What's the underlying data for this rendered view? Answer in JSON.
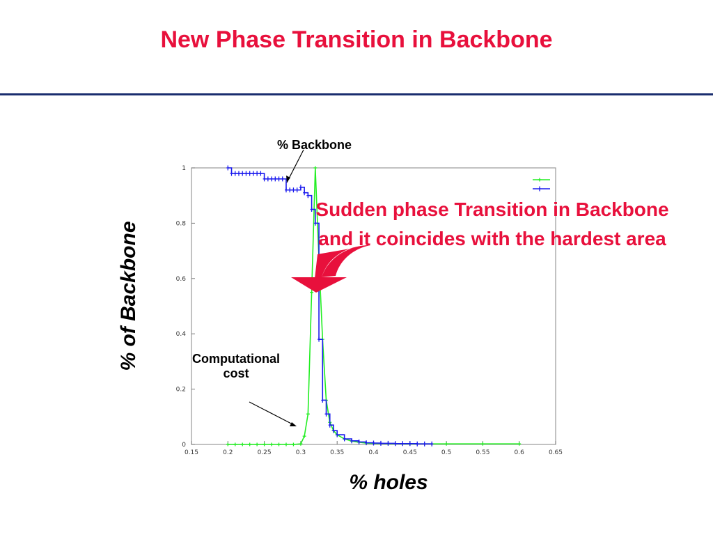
{
  "title": "New Phase Transition in Backbone",
  "colors": {
    "title": "#e8103c",
    "rule": "#1a2d6e",
    "callout": "#e8103c",
    "green": "#22ee22",
    "blue": "#1a1aee",
    "arrow": "#e8103c"
  },
  "annotations": {
    "backbone": "% Backbone",
    "cost_line1": "Computational",
    "cost_line2": "cost",
    "callout_line1": "Sudden phase Transition in Backbone",
    "callout_line2": "and it coincides with the hardest area"
  },
  "chart_data": {
    "type": "line",
    "xlabel": "% holes",
    "ylabel": "% of Backbone",
    "xlim": [
      0.15,
      0.65
    ],
    "ylim": [
      0,
      1
    ],
    "xticks": [
      "0.15",
      "0.2",
      "0.25",
      "0.3",
      "0.35",
      "0.4",
      "0.45",
      "0.5",
      "0.55",
      "0.6",
      "0.65"
    ],
    "yticks": [
      "0",
      "0.2",
      "0.4",
      "0.6",
      "0.8",
      "1"
    ],
    "grid": false,
    "legend_position": "top-right",
    "series": [
      {
        "color": "#22ee22",
        "x": [
          0.2,
          0.21,
          0.22,
          0.23,
          0.24,
          0.25,
          0.26,
          0.27,
          0.28,
          0.29,
          0.3,
          0.305,
          0.31,
          0.315,
          0.32,
          0.325,
          0.33,
          0.335,
          0.34,
          0.345,
          0.35,
          0.36,
          0.37,
          0.38,
          0.39,
          0.4,
          0.42,
          0.45,
          0.5,
          0.55,
          0.6
        ],
        "y": [
          0,
          0,
          0,
          0,
          0,
          0,
          0,
          0,
          0,
          0,
          0.002,
          0.03,
          0.11,
          0.55,
          1.0,
          0.67,
          0.38,
          0.16,
          0.08,
          0.05,
          0.035,
          0.02,
          0.012,
          0.008,
          0.005,
          0.004,
          0.003,
          0.002,
          0.002,
          0.002,
          0.002
        ]
      },
      {
        "color": "#1a1aee",
        "x": [
          0.2,
          0.205,
          0.21,
          0.215,
          0.22,
          0.225,
          0.23,
          0.235,
          0.24,
          0.245,
          0.25,
          0.255,
          0.26,
          0.265,
          0.27,
          0.275,
          0.28,
          0.285,
          0.29,
          0.295,
          0.3,
          0.305,
          0.31,
          0.315,
          0.32,
          0.325,
          0.33,
          0.335,
          0.34,
          0.345,
          0.35,
          0.36,
          0.37,
          0.38,
          0.39,
          0.4,
          0.41,
          0.42,
          0.43,
          0.44,
          0.45,
          0.46,
          0.47,
          0.48
        ],
        "y": [
          1.0,
          0.98,
          0.98,
          0.98,
          0.98,
          0.98,
          0.98,
          0.98,
          0.98,
          0.98,
          0.96,
          0.96,
          0.96,
          0.96,
          0.96,
          0.96,
          0.92,
          0.92,
          0.92,
          0.92,
          0.93,
          0.91,
          0.9,
          0.85,
          0.8,
          0.38,
          0.16,
          0.11,
          0.07,
          0.05,
          0.035,
          0.02,
          0.013,
          0.009,
          0.006,
          0.005,
          0.004,
          0.004,
          0.003,
          0.003,
          0.003,
          0.002,
          0.002,
          0.002
        ]
      }
    ]
  }
}
